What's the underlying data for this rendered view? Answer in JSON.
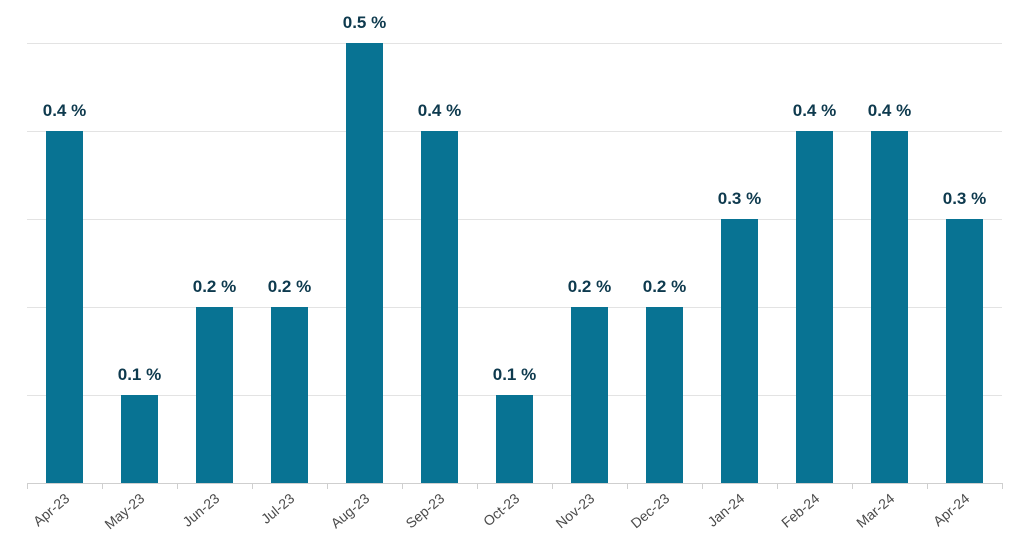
{
  "chart_data": {
    "type": "bar",
    "categories": [
      "Apr-23",
      "May-23",
      "Jun-23",
      "Jul-23",
      "Aug-23",
      "Sep-23",
      "Oct-23",
      "Nov-23",
      "Dec-23",
      "Jan-24",
      "Feb-24",
      "Mar-24",
      "Apr-24"
    ],
    "values": [
      0.4,
      0.1,
      0.2,
      0.2,
      0.5,
      0.4,
      0.1,
      0.2,
      0.2,
      0.3,
      0.4,
      0.4,
      0.3
    ],
    "data_labels": [
      "0.4 %",
      "0.1 %",
      "0.2 %",
      "0.2 %",
      "0.5 %",
      "0.4 %",
      "0.1 %",
      "0.2 %",
      "0.2 %",
      "0.3 %",
      "0.4 %",
      "0.4 %",
      "0.3 %"
    ],
    "title": "",
    "xlabel": "",
    "ylabel": "",
    "ylim": [
      0,
      0.5
    ],
    "grid": true,
    "y_tick_labels_shown": false,
    "legend": "none",
    "colors": {
      "bar": "#087393",
      "label": "#0e3a4e",
      "gridline": "#e3e3e3",
      "tick_text": "#4a4a4a"
    }
  }
}
